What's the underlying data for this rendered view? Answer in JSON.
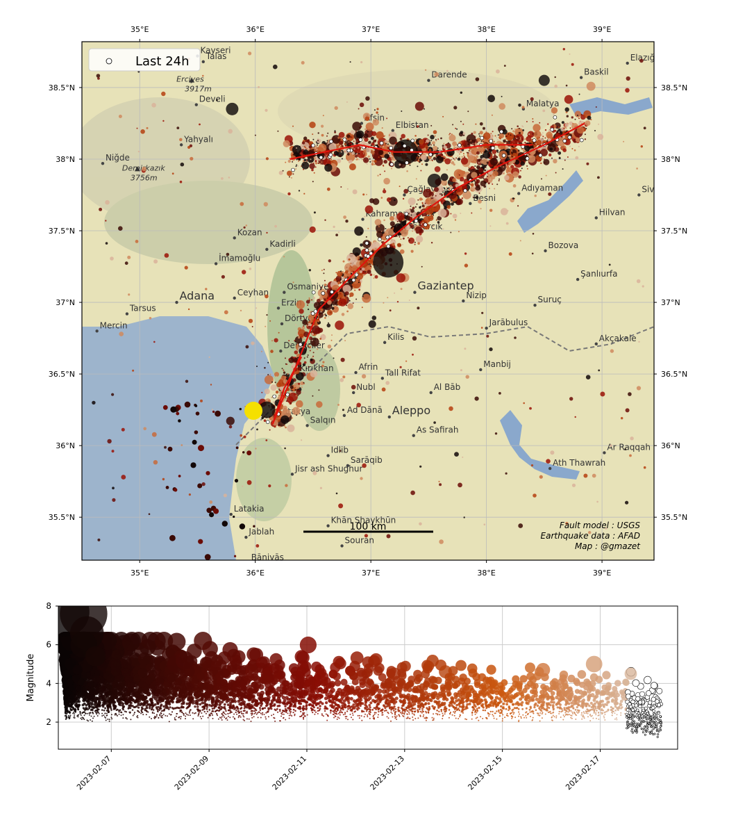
{
  "map": {
    "lon_range": [
      34.5,
      39.45
    ],
    "lat_range": [
      35.2,
      38.82
    ],
    "lon_ticks": [
      {
        "v": 35,
        "label": "35°E"
      },
      {
        "v": 36,
        "label": "36°E"
      },
      {
        "v": 37,
        "label": "37°E"
      },
      {
        "v": 38,
        "label": "38°E"
      },
      {
        "v": 39,
        "label": "39°E"
      }
    ],
    "lat_ticks": [
      {
        "v": 35.5,
        "label": "35.5°N"
      },
      {
        "v": 36,
        "label": "36°N"
      },
      {
        "v": 36.5,
        "label": "36.5°N"
      },
      {
        "v": 37,
        "label": "37°N"
      },
      {
        "v": 37.5,
        "label": "37.5°N"
      },
      {
        "v": 38,
        "label": "38°N"
      },
      {
        "v": 38.5,
        "label": "38.5°N"
      }
    ],
    "legend_label": "Last 24h",
    "scale_label": "100 km",
    "credits": [
      "Fault model : USGS",
      "Earthquake data : AFAD",
      "Map : @gmazet"
    ],
    "colors": {
      "sea": "#9db4cc",
      "land": "#e7e2b8",
      "fault": "#e0140c",
      "mainshock": "#f5e000"
    },
    "places": [
      {
        "name": "Kayseri",
        "lon": 35.5,
        "lat": 38.72,
        "big": false
      },
      {
        "name": "Talas",
        "lon": 35.55,
        "lat": 38.68,
        "big": false
      },
      {
        "name": "Develi",
        "lon": 35.49,
        "lat": 38.38,
        "big": false
      },
      {
        "name": "Yahyalı",
        "lon": 35.36,
        "lat": 38.1,
        "big": false
      },
      {
        "name": "Niğde",
        "lon": 34.68,
        "lat": 37.97,
        "big": false
      },
      {
        "name": "Darende",
        "lon": 37.5,
        "lat": 38.55,
        "big": false
      },
      {
        "name": "Elazığ",
        "lon": 39.22,
        "lat": 38.67,
        "big": false
      },
      {
        "name": "Baskil",
        "lon": 38.82,
        "lat": 38.57,
        "big": false
      },
      {
        "name": "Malatya",
        "lon": 38.32,
        "lat": 38.35,
        "big": false
      },
      {
        "name": "Afşin",
        "lon": 36.92,
        "lat": 38.25,
        "big": false
      },
      {
        "name": "Elbistan",
        "lon": 37.19,
        "lat": 38.2,
        "big": false
      },
      {
        "name": "Çağlayancerit",
        "lon": 37.29,
        "lat": 37.75,
        "big": false
      },
      {
        "name": "Adıyaman",
        "lon": 38.28,
        "lat": 37.76,
        "big": false
      },
      {
        "name": "Besni",
        "lon": 37.86,
        "lat": 37.69,
        "big": false
      },
      {
        "name": "Siverek",
        "lon": 39.32,
        "lat": 37.75,
        "big": false
      },
      {
        "name": "Hilvan",
        "lon": 38.95,
        "lat": 37.59,
        "big": false
      },
      {
        "name": "Kahramanmaraş",
        "lon": 36.93,
        "lat": 37.58,
        "big": false
      },
      {
        "name": "Pazarcık",
        "lon": 37.3,
        "lat": 37.49,
        "big": false
      },
      {
        "name": "Kozan",
        "lon": 35.82,
        "lat": 37.45,
        "big": false
      },
      {
        "name": "Kadirli",
        "lon": 36.1,
        "lat": 37.37,
        "big": false
      },
      {
        "name": "Bozova",
        "lon": 38.51,
        "lat": 37.36,
        "big": false
      },
      {
        "name": "İmamoğlu",
        "lon": 35.66,
        "lat": 37.27,
        "big": false
      },
      {
        "name": "Şanlıurfa",
        "lon": 38.79,
        "lat": 37.16,
        "big": false
      },
      {
        "name": "Gaziantep",
        "lon": 37.38,
        "lat": 37.07,
        "big": true
      },
      {
        "name": "Nizip",
        "lon": 37.8,
        "lat": 37.01,
        "big": false
      },
      {
        "name": "Adana",
        "lon": 35.32,
        "lat": 37.0,
        "big": true
      },
      {
        "name": "Osmaniye",
        "lon": 36.25,
        "lat": 37.07,
        "big": false
      },
      {
        "name": "Ceyhan",
        "lon": 35.82,
        "lat": 37.03,
        "big": false
      },
      {
        "name": "Suruç",
        "lon": 38.42,
        "lat": 36.98,
        "big": false
      },
      {
        "name": "Tarsus",
        "lon": 34.89,
        "lat": 36.92,
        "big": false
      },
      {
        "name": "Erzin",
        "lon": 36.2,
        "lat": 36.96,
        "big": false
      },
      {
        "name": "Dörtyol",
        "lon": 36.23,
        "lat": 36.85,
        "big": false
      },
      {
        "name": "Jarābulus",
        "lon": 38.0,
        "lat": 36.82,
        "big": false
      },
      {
        "name": "Mercin",
        "lon": 34.63,
        "lat": 36.8,
        "big": false
      },
      {
        "name": "Kilis",
        "lon": 37.12,
        "lat": 36.72,
        "big": false
      },
      {
        "name": "Akçakale",
        "lon": 38.95,
        "lat": 36.71,
        "big": false
      },
      {
        "name": "Denizciler",
        "lon": 36.22,
        "lat": 36.66,
        "big": false
      },
      {
        "name": "Afrin",
        "lon": 36.87,
        "lat": 36.51,
        "big": false
      },
      {
        "name": "Tall Rifat",
        "lon": 37.1,
        "lat": 36.47,
        "big": false
      },
      {
        "name": "Kırıkhan",
        "lon": 36.36,
        "lat": 36.5,
        "big": false
      },
      {
        "name": "Manbij",
        "lon": 37.95,
        "lat": 36.53,
        "big": false
      },
      {
        "name": "Al Bāb",
        "lon": 37.52,
        "lat": 36.37,
        "big": false
      },
      {
        "name": "Nubl",
        "lon": 36.85,
        "lat": 36.37,
        "big": false
      },
      {
        "name": "Antakya",
        "lon": 36.16,
        "lat": 36.2,
        "big": false
      },
      {
        "name": "Aleppo",
        "lon": 37.16,
        "lat": 36.2,
        "big": true
      },
      {
        "name": "Ad Dānā",
        "lon": 36.77,
        "lat": 36.21,
        "big": false
      },
      {
        "name": "As Safirah",
        "lon": 37.37,
        "lat": 36.07,
        "big": false
      },
      {
        "name": "Salqın",
        "lon": 36.45,
        "lat": 36.14,
        "big": false
      },
      {
        "name": "Ar Raqqah",
        "lon": 39.02,
        "lat": 35.95,
        "big": false
      },
      {
        "name": "Idlib",
        "lon": 36.63,
        "lat": 35.93,
        "big": false
      },
      {
        "name": "Sarāqib",
        "lon": 36.8,
        "lat": 35.86,
        "big": false
      },
      {
        "name": "Ath Thawrah",
        "lon": 38.55,
        "lat": 35.84,
        "big": false
      },
      {
        "name": "Jisr ash Shughur",
        "lon": 36.32,
        "lat": 35.8,
        "big": false
      },
      {
        "name": "Latakia",
        "lon": 35.79,
        "lat": 35.52,
        "big": false
      },
      {
        "name": "Khān Shaykhūn",
        "lon": 36.63,
        "lat": 35.44,
        "big": false
      },
      {
        "name": "Jablah",
        "lon": 35.92,
        "lat": 35.36,
        "big": false
      },
      {
        "name": "Souran",
        "lon": 36.75,
        "lat": 35.3,
        "big": false
      },
      {
        "name": "Bāniyās",
        "lon": 35.94,
        "lat": 35.18,
        "big": false
      }
    ],
    "mountains": [
      {
        "name": "Demirkazık",
        "elev": "3756m",
        "lon": 34.98,
        "lat": 37.93
      },
      {
        "name": "Erciyes",
        "elev": "3917m",
        "lon": 35.45,
        "lat": 38.55
      }
    ]
  },
  "plot": {
    "ylabel": "Magnitude",
    "ylim": [
      0.6,
      8.0
    ],
    "y_ticks": [
      2,
      4,
      6,
      8
    ],
    "x_range": [
      "2023-02-05T22:00",
      "2023-02-18T14:00"
    ],
    "x_ticks": [
      "2023-02-07",
      "2023-02-09",
      "2023-02-11",
      "2023-02-13",
      "2023-02-15",
      "2023-02-17"
    ],
    "colors": {
      "early": "#0a0505",
      "mid": "#8a0e05",
      "late_orange": "#cc5a10",
      "recent": "#d8b59a",
      "last24": "#ffffff"
    },
    "notable_events": [
      {
        "time": "2023-02-06T01:17",
        "mag": 7.7
      },
      {
        "time": "2023-02-06T10:24",
        "mag": 7.6
      },
      {
        "time": "2023-02-06T12:02",
        "mag": 6.6
      },
      {
        "time": "2023-02-06T10:26",
        "mag": 6.0
      },
      {
        "time": "2023-02-06T16:14",
        "mag": 5.4
      },
      {
        "time": "2023-02-08T07:20",
        "mag": 5.0
      },
      {
        "time": "2023-02-08T12:00",
        "mag": 5.2
      },
      {
        "time": "2023-02-09T21:00",
        "mag": 4.6
      },
      {
        "time": "2023-02-10T04:00",
        "mag": 4.2
      },
      {
        "time": "2023-02-12T03:00",
        "mag": 4.4
      },
      {
        "time": "2023-02-12T19:00",
        "mag": 4.5
      },
      {
        "time": "2023-02-13T20:00",
        "mag": 4.6
      },
      {
        "time": "2023-02-15T20:00",
        "mag": 4.7
      },
      {
        "time": "2023-02-16T21:00",
        "mag": 5.0
      },
      {
        "time": "2023-02-17T15:00",
        "mag": 4.5
      }
    ]
  }
}
